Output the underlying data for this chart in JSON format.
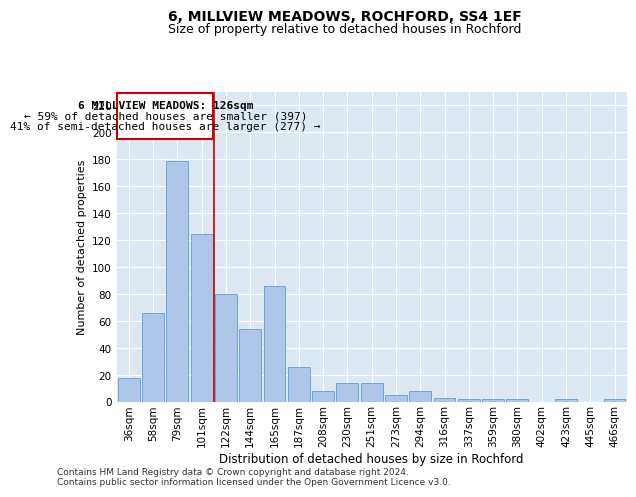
{
  "title": "6, MILLVIEW MEADOWS, ROCHFORD, SS4 1EF",
  "subtitle": "Size of property relative to detached houses in Rochford",
  "xlabel": "Distribution of detached houses by size in Rochford",
  "ylabel": "Number of detached properties",
  "categories": [
    "36sqm",
    "58sqm",
    "79sqm",
    "101sqm",
    "122sqm",
    "144sqm",
    "165sqm",
    "187sqm",
    "208sqm",
    "230sqm",
    "251sqm",
    "273sqm",
    "294sqm",
    "316sqm",
    "337sqm",
    "359sqm",
    "380sqm",
    "402sqm",
    "423sqm",
    "445sqm",
    "466sqm"
  ],
  "values": [
    18,
    66,
    179,
    125,
    80,
    54,
    86,
    26,
    8,
    14,
    14,
    5,
    8,
    3,
    2,
    2,
    2,
    0,
    2,
    0,
    2
  ],
  "bar_color": "#aec6e8",
  "bar_edge_color": "#5a9fd4",
  "vline_color": "#cc0000",
  "box_color": "#cc0000",
  "ylim": [
    0,
    230
  ],
  "yticks": [
    0,
    20,
    40,
    60,
    80,
    100,
    120,
    140,
    160,
    180,
    200,
    220
  ],
  "bg_color": "#dde8f5",
  "annotation_line1": "6 MILLVIEW MEADOWS: 126sqm",
  "annotation_line2": "← 59% of detached houses are smaller (397)",
  "annotation_line3": "41% of semi-detached houses are larger (277) →",
  "footer": "Contains HM Land Registry data © Crown copyright and database right 2024.\nContains public sector information licensed under the Open Government Licence v3.0.",
  "title_fontsize": 10,
  "subtitle_fontsize": 9,
  "xlabel_fontsize": 8.5,
  "ylabel_fontsize": 8,
  "tick_fontsize": 7.5,
  "annotation_fontsize": 8,
  "footer_fontsize": 6.5
}
